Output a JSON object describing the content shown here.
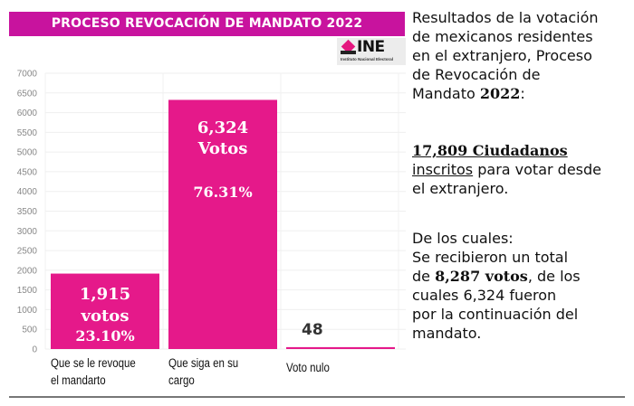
{
  "header": {
    "title": "PROCESO REVOCACIÓN DE MANDATO 2022",
    "logo_text": "INE",
    "logo_subtitle": "Instituto Nacional Electoral",
    "brand_color": "#c8139e"
  },
  "chart_data": {
    "type": "bar",
    "title": "PROCESO REVOCACIÓN DE MANDATO 2022",
    "categories": [
      "Que se le revoque el mandarto",
      "Que siga en su cargo",
      "Voto nulo"
    ],
    "category_lines": [
      [
        "Que se le revoque",
        "el mandarto"
      ],
      [
        "Que siga en su",
        "cargo"
      ],
      [
        "Voto nulo"
      ]
    ],
    "values": [
      1915,
      6324,
      48
    ],
    "data_labels": [
      [
        "1,915",
        "votos",
        "23.10%"
      ],
      [
        "6,324",
        "Votos",
        "",
        "76.31%"
      ],
      [
        "48"
      ]
    ],
    "xlabel": "",
    "ylabel": "",
    "ylim": [
      0,
      7000
    ],
    "yticks": [
      0,
      500,
      1000,
      1500,
      2000,
      2500,
      3000,
      3500,
      4000,
      4500,
      5000,
      5500,
      6000,
      6500,
      7000
    ],
    "grid": true,
    "legend": "none",
    "bar_color": "#e5198a"
  },
  "side_panel": {
    "intro_lines": [
      "Resultados de la votación",
      "de mexicanos residentes",
      "en el extranjero, Proceso",
      "de Revocación de",
      "Mandato "
    ],
    "intro_year": "2022",
    "intro_colon": ":",
    "citizens_bold": "17,809 Ciudadanos",
    "citizens_underlined": "inscritos",
    "citizens_rest": " para votar desde",
    "citizens_line3": "el extranjero.",
    "cuales_line1": "De los cuales:",
    "cuales_line2": "Se recibieron un total",
    "cuales_line3_pre": "de ",
    "cuales_line3_bold": "8,287 votos",
    "cuales_line3_post": ", de los",
    "cuales_line4": "cuales 6,324 fueron",
    "cuales_line5": "por la continuación del",
    "cuales_line6": "mandato."
  }
}
